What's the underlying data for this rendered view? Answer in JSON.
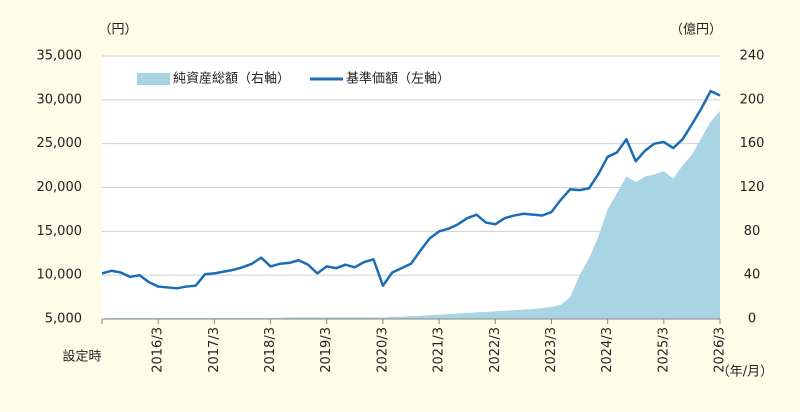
{
  "chart_data": {
    "type": "combo",
    "y_unit": "（円）",
    "y2_unit": "（億円）",
    "x_unit": "（年/月）",
    "categories": [
      "設定時",
      null,
      null,
      null,
      null,
      null,
      "2016/3",
      null,
      null,
      null,
      null,
      null,
      "2017/3",
      null,
      null,
      null,
      null,
      null,
      "2018/3",
      null,
      null,
      null,
      null,
      null,
      "2019/3",
      null,
      null,
      null,
      null,
      null,
      "2020/3",
      null,
      null,
      null,
      null,
      null,
      "2021/3",
      null,
      null,
      null,
      null,
      null,
      "2022/3",
      null,
      null,
      null,
      null,
      null,
      "2023/3",
      null,
      null,
      null,
      null,
      null,
      "2024/3",
      null,
      null,
      null,
      null,
      null,
      "2025/3",
      null,
      null,
      null,
      null,
      null,
      "2026/3"
    ],
    "series": [
      {
        "name": "純資産総額（右軸）",
        "type": "area",
        "axis": "y2",
        "color": "#a9d4e4",
        "values": [
          0.3,
          1,
          1,
          1,
          1,
          1,
          1,
          1,
          1,
          1,
          1,
          1,
          1,
          1,
          1,
          1,
          1,
          1,
          1,
          1,
          1.5,
          1.5,
          1.5,
          1.5,
          1.5,
          1.5,
          1.5,
          1.5,
          1.5,
          1.5,
          1.2,
          2,
          2,
          2.5,
          3,
          3.5,
          4,
          4.5,
          5,
          5.5,
          6,
          6.5,
          7,
          7.5,
          8,
          8.5,
          9,
          10,
          11,
          13,
          20,
          40,
          55,
          75,
          100,
          115,
          130,
          125,
          130,
          132,
          135,
          128,
          140,
          150,
          165,
          180,
          190
        ]
      },
      {
        "name": "基準価額（左軸）",
        "type": "line",
        "axis": "y",
        "color": "#1a6db4",
        "values": [
          10200,
          10500,
          10300,
          9800,
          10000,
          9200,
          8700,
          8600,
          8500,
          8700,
          8800,
          10100,
          10200,
          10400,
          10600,
          10900,
          11300,
          12000,
          11000,
          11300,
          11400,
          11700,
          11200,
          10200,
          11000,
          10800,
          11200,
          10900,
          11500,
          11800,
          8800,
          10300,
          10800,
          11300,
          12800,
          14200,
          15000,
          15300,
          15800,
          16500,
          16900,
          16000,
          15800,
          16500,
          16800,
          17000,
          16900,
          16800,
          17200,
          18600,
          19800,
          19700,
          19900,
          21500,
          23500,
          24000,
          25500,
          23000,
          24200,
          25000,
          25200,
          24500,
          25500,
          27200,
          29000,
          31000,
          30500
        ]
      }
    ],
    "ylim": [
      5000,
      35000
    ],
    "yticks": [
      {
        "value": 5000,
        "label": "5,000"
      },
      {
        "value": 10000,
        "label": "10,000"
      },
      {
        "value": 15000,
        "label": "15,000"
      },
      {
        "value": 20000,
        "label": "20,000"
      },
      {
        "value": 25000,
        "label": "25,000"
      },
      {
        "value": 30000,
        "label": "30,000"
      },
      {
        "value": 35000,
        "label": "35,000"
      }
    ],
    "y2lim": [
      0,
      240
    ],
    "y2ticks": [
      0,
      40,
      80,
      120,
      160,
      200,
      240
    ],
    "grid": true
  }
}
